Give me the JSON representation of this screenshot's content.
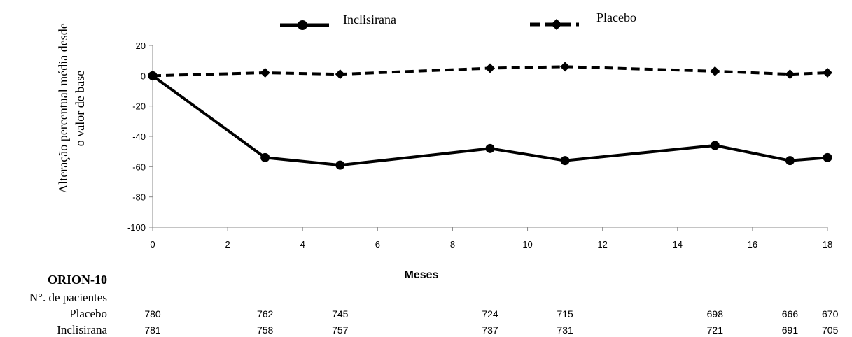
{
  "chart_data": {
    "type": "line",
    "xlabel": "Meses",
    "ylabel_lines": [
      "Alteração percentual média desde",
      "o valor de base"
    ],
    "xlim": [
      0,
      18
    ],
    "ylim": [
      -100,
      20
    ],
    "x_ticks": [
      0,
      2,
      4,
      6,
      8,
      10,
      12,
      14,
      16,
      18
    ],
    "y_ticks": [
      20,
      0,
      -20,
      -40,
      -60,
      -80,
      -100
    ],
    "grid": false,
    "legend_position": "top",
    "series": [
      {
        "name": "Inclisirana",
        "style": "solid",
        "marker": "circle",
        "color": "#000000",
        "x": [
          0,
          3,
          5,
          9,
          11,
          15,
          17,
          18
        ],
        "y": [
          0,
          -54,
          -59,
          -48,
          -56,
          -46,
          -56,
          -54
        ]
      },
      {
        "name": "Placebo",
        "style": "dashed",
        "marker": "diamond",
        "color": "#000000",
        "x": [
          0,
          3,
          5,
          9,
          11,
          15,
          17,
          18
        ],
        "y": [
          0,
          2,
          1,
          5,
          6,
          3,
          1,
          2
        ]
      }
    ]
  },
  "patients_table": {
    "study": "ORION-10",
    "header": "N°. de pacientes",
    "x": [
      0,
      3,
      5,
      9,
      11,
      15,
      17,
      18
    ],
    "rows": [
      {
        "label": "Placebo",
        "values": [
          "780",
          "762",
          "745",
          "724",
          "715",
          "698",
          "666",
          "670"
        ]
      },
      {
        "label": "Inclisirana",
        "values": [
          "781",
          "758",
          "757",
          "737",
          "731",
          "721",
          "691",
          "705"
        ]
      }
    ]
  }
}
